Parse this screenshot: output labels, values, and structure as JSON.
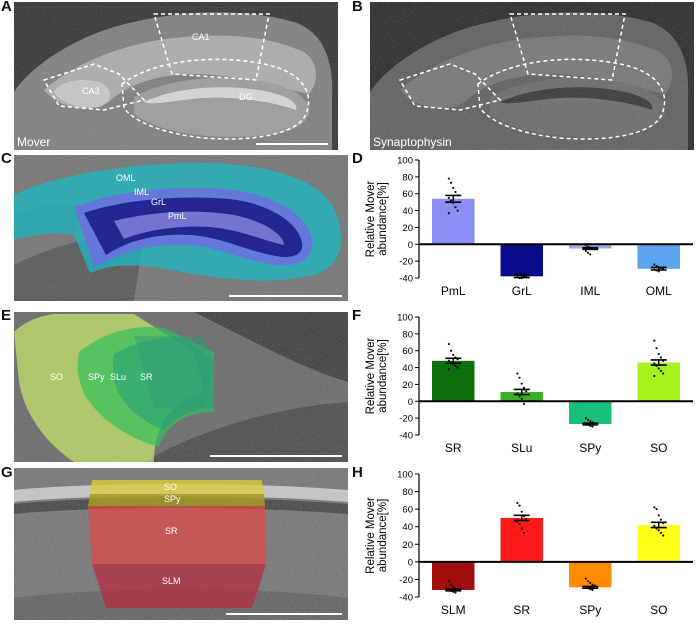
{
  "panels": {
    "A": {
      "letter": "A",
      "caption": "Mover",
      "labels": {
        "ca1": "CA1",
        "ca3": "CA3",
        "dg": "DG"
      }
    },
    "B": {
      "letter": "B",
      "caption": "Synaptophysin"
    },
    "C": {
      "letter": "C",
      "labels": {
        "oml": "OML",
        "iml": "IML",
        "grl": "GrL",
        "pml": "PmL"
      }
    },
    "E": {
      "letter": "E",
      "labels": {
        "so": "SO",
        "spy": "SPy",
        "slu": "SLu",
        "sr": "SR"
      }
    },
    "G": {
      "letter": "G",
      "labels": {
        "so": "SO",
        "spy": "SPy",
        "sr": "SR",
        "slm": "SLM"
      }
    },
    "D": {
      "letter": "D"
    },
    "F": {
      "letter": "F"
    },
    "H": {
      "letter": "H"
    }
  },
  "chart_data": [
    {
      "id": "D",
      "type": "bar",
      "ylabel": "Relative Mover abundance[%]",
      "ylim": [
        -40,
        100
      ],
      "yticks": [
        -40,
        -20,
        0,
        20,
        40,
        60,
        80,
        100
      ],
      "categories": [
        "PmL",
        "GrL",
        "IML",
        "OML"
      ],
      "values": [
        54,
        -38,
        -5,
        -29
      ],
      "errors": [
        4,
        1.5,
        1,
        1.5
      ],
      "colors": [
        "#8b8ff5",
        "#0a0a8c",
        "#9aaee8",
        "#5ba5ef"
      ],
      "points": [
        [
          78,
          73,
          67,
          62,
          58,
          55,
          52,
          49,
          44,
          40,
          37
        ],
        [
          -33,
          -35,
          -36,
          -37,
          -38,
          -39,
          -40,
          -40,
          -39
        ],
        [
          -1,
          -3,
          -4,
          -5,
          -6,
          -8,
          -10,
          -12
        ],
        [
          -24,
          -26,
          -27,
          -28,
          -29,
          -30,
          -31,
          -32
        ]
      ]
    },
    {
      "id": "F",
      "type": "bar",
      "ylabel": "Relative Mover abundance[%]",
      "ylim": [
        -40,
        100
      ],
      "yticks": [
        -40,
        -20,
        0,
        20,
        40,
        60,
        80,
        100
      ],
      "categories": [
        "SR",
        "SLu",
        "SPy",
        "SO"
      ],
      "values": [
        48,
        11,
        -27,
        46
      ],
      "errors": [
        3,
        3,
        1,
        3
      ],
      "colors": [
        "#0d6e0d",
        "#3caf28",
        "#18c07a",
        "#a6f21c"
      ],
      "points": [
        [
          68,
          60,
          55,
          52,
          50,
          48,
          46,
          44,
          42,
          40,
          38
        ],
        [
          33,
          28,
          21,
          16,
          12,
          9,
          6,
          3,
          -3
        ],
        [
          -20,
          -22,
          -24,
          -25,
          -26,
          -27,
          -28,
          -29,
          -30
        ],
        [
          72,
          63,
          56,
          52,
          48,
          45,
          42,
          39,
          36,
          33,
          30
        ]
      ]
    },
    {
      "id": "H",
      "type": "bar",
      "ylabel": "Relative Mover abundance[%]",
      "ylim": [
        -40,
        100
      ],
      "yticks": [
        -40,
        -20,
        0,
        20,
        40,
        60,
        80,
        100
      ],
      "categories": [
        "SLM",
        "SR",
        "SPy",
        "SO"
      ],
      "values": [
        -32,
        50,
        -29,
        42
      ],
      "errors": [
        1,
        3,
        1,
        3
      ],
      "colors": [
        "#a10d0d",
        "#ff1a1a",
        "#ff8c00",
        "#ffff1a"
      ],
      "points": [
        [
          -22,
          -26,
          -28,
          -30,
          -31,
          -32,
          -33,
          -34,
          -35
        ],
        [
          67,
          64,
          57,
          52,
          49,
          46,
          43,
          38,
          33
        ],
        [
          -19,
          -22,
          -24,
          -26,
          -27,
          -28,
          -30,
          -31,
          -32
        ],
        [
          62,
          60,
          53,
          48,
          44,
          41,
          38,
          36,
          33,
          30
        ]
      ]
    }
  ]
}
